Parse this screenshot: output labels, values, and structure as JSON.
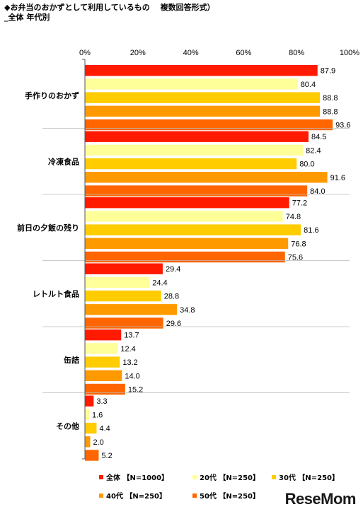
{
  "title_line1": "◆お弁当のおかずとして利用しているもの　 複数回答形式）",
  "title_line2": "_全体 年代別",
  "logo": "ReseMom",
  "chart_data": {
    "type": "bar",
    "orientation": "horizontal",
    "categories": [
      "手作りのおかず",
      "冷凍食品",
      "前日の夕飯の残り",
      "レトルト食品",
      "缶詰",
      "その他"
    ],
    "xlim": [
      0,
      100
    ],
    "ticks": [
      "0%",
      "20%",
      "40%",
      "60%",
      "80%",
      "100%"
    ],
    "tick_values": [
      0,
      20,
      40,
      60,
      80,
      100
    ],
    "series": [
      {
        "name": "全体 【N=1000】",
        "color": "#ff1a00",
        "values": [
          87.9,
          84.5,
          77.2,
          29.4,
          13.7,
          3.3
        ],
        "labels": [
          "87.9",
          "84.5",
          "77.2",
          "29.4",
          "13.7",
          "3.3"
        ]
      },
      {
        "name": "20代 【N=250】",
        "color": "#ffff99",
        "values": [
          80.4,
          82.4,
          74.8,
          24.4,
          12.4,
          1.6
        ],
        "labels": [
          "80.4",
          "82.4",
          "74.8",
          "24.4",
          "12.4",
          "1.6"
        ]
      },
      {
        "name": "30代 【N=250】",
        "color": "#ffcc00",
        "values": [
          88.8,
          80.0,
          81.6,
          28.8,
          13.2,
          4.4
        ],
        "labels": [
          "88.8",
          "80.0",
          "81.6",
          "28.8",
          "13.2",
          "4.4"
        ]
      },
      {
        "name": "40代 【N=250】",
        "color": "#ff9900",
        "values": [
          88.8,
          91.6,
          76.8,
          34.8,
          14.0,
          2.0
        ],
        "labels": [
          "88.8",
          "91.6",
          "76.8",
          "34.8",
          "14.0",
          "2.0"
        ]
      },
      {
        "name": "50代 【N=250】",
        "color": "#ff6600",
        "values": [
          93.6,
          84.0,
          75.6,
          29.6,
          15.2,
          5.2
        ],
        "labels": [
          "93.6",
          "84.0",
          "75.6",
          "29.6",
          "15.2",
          "5.2"
        ]
      }
    ],
    "legend_position": "bottom",
    "grid": false
  }
}
